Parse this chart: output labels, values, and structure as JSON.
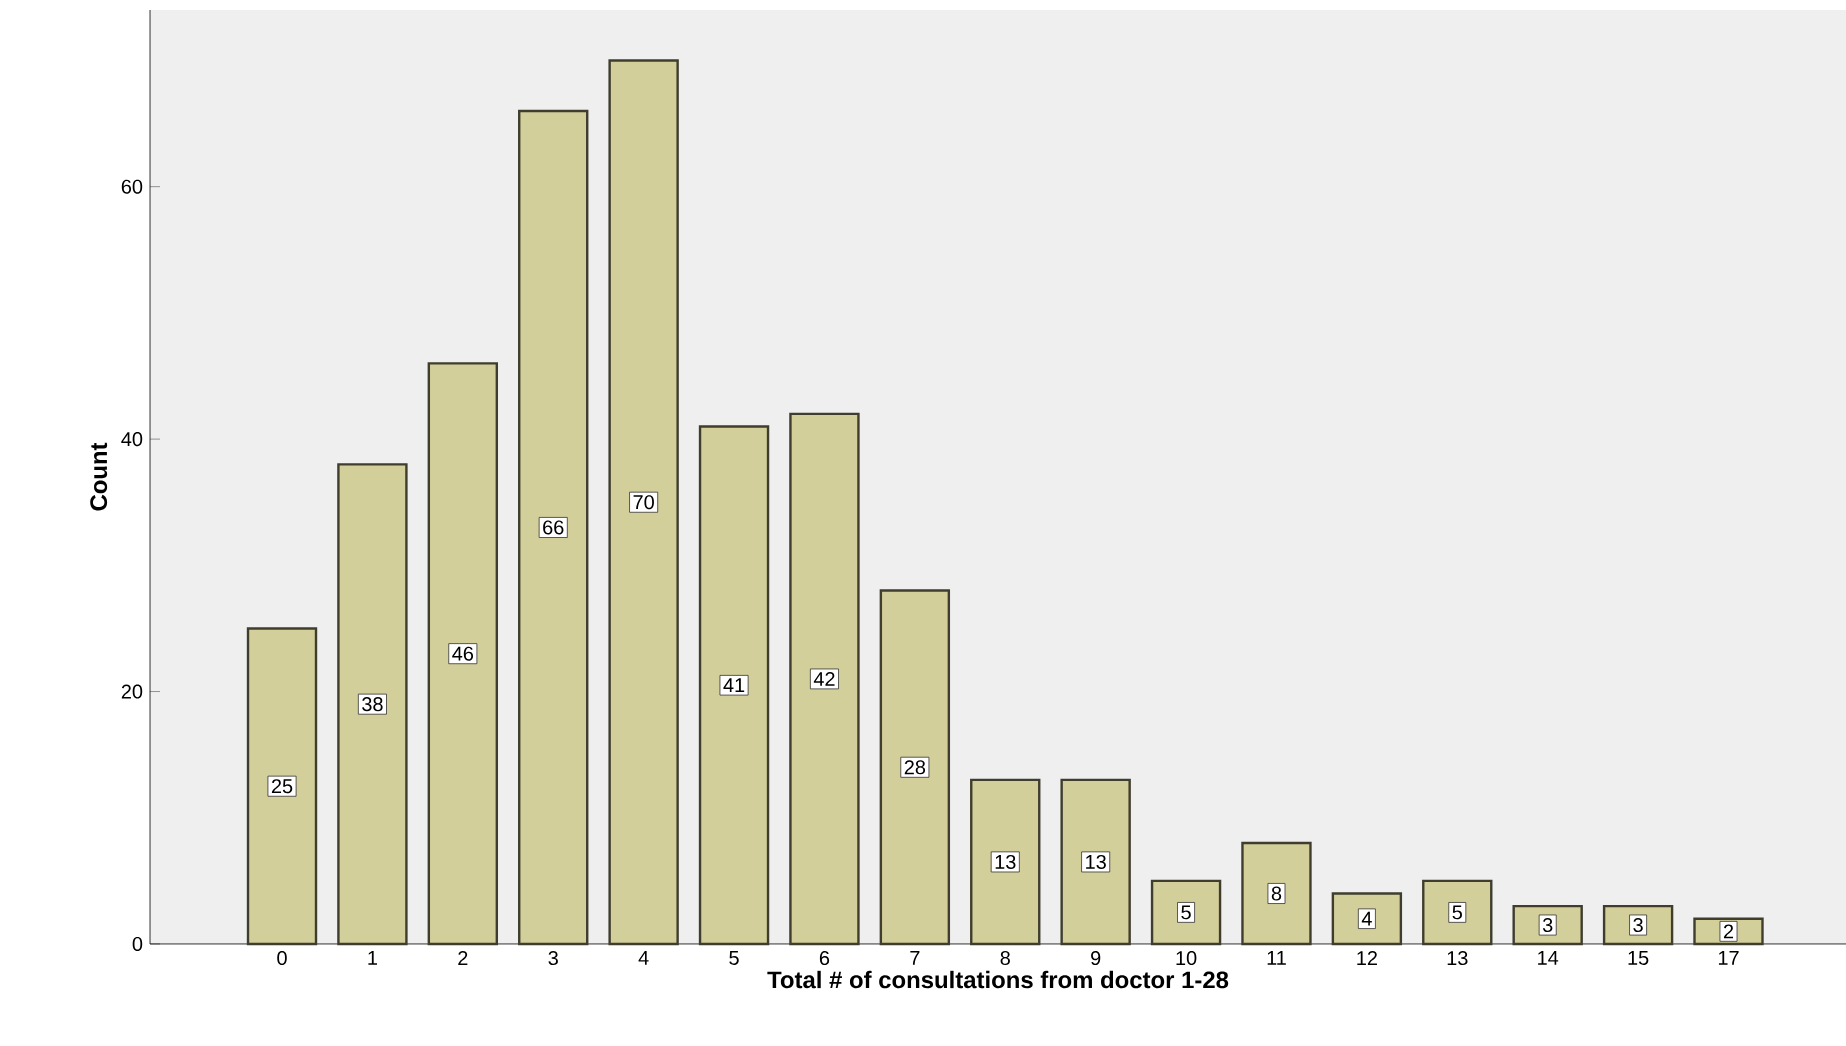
{
  "chart_data": {
    "type": "bar",
    "xlabel": "Total # of consultations from doctor 1-28",
    "ylabel": "Count",
    "categories": [
      "0",
      "1",
      "2",
      "3",
      "4",
      "5",
      "6",
      "7",
      "8",
      "9",
      "10",
      "11",
      "12",
      "13",
      "14",
      "15",
      "17"
    ],
    "values": [
      25,
      38,
      46,
      66,
      70,
      41,
      42,
      28,
      13,
      13,
      5,
      8,
      4,
      5,
      3,
      3,
      2
    ],
    "color": "#d3cf9b",
    "ylim": [
      0,
      74
    ],
    "yticks": [
      0,
      20,
      40,
      60
    ],
    "data_labels": true
  }
}
